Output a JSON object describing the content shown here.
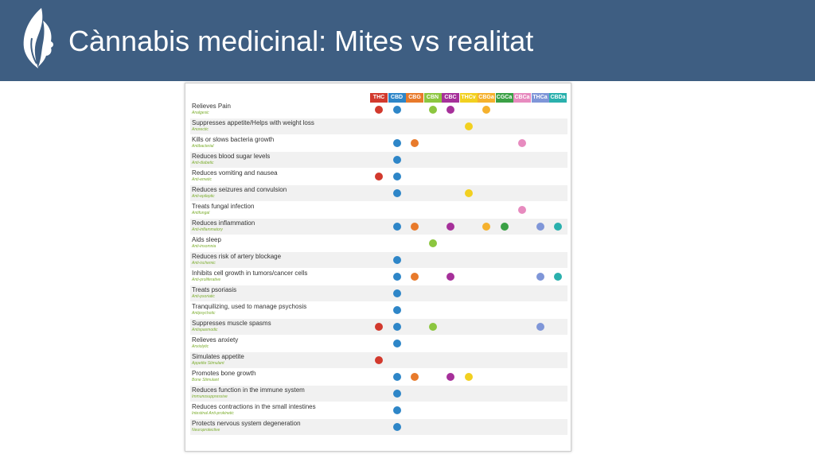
{
  "header": {
    "title": "Cànnabis medicinal: Mites vs realitat",
    "background": "#3e5e82",
    "logo_icon": "leaf-face-logo-icon"
  },
  "chart_data": {
    "type": "table",
    "columns": [
      {
        "label": "THC",
        "color": "#d2392d"
      },
      {
        "label": "CBD",
        "color": "#2e86c8"
      },
      {
        "label": "CBG",
        "color": "#e87a2b"
      },
      {
        "label": "CBN",
        "color": "#8cc63f"
      },
      {
        "label": "CBC",
        "color": "#a6309a"
      },
      {
        "label": "THCv",
        "color": "#f2d020"
      },
      {
        "label": "CBGa",
        "color": "#f5b12e"
      },
      {
        "label": "CGCa",
        "color": "#3aa045"
      },
      {
        "label": "CBCa",
        "color": "#e78bbf"
      },
      {
        "label": "THCa",
        "color": "#7f96d8"
      },
      {
        "label": "CBDa",
        "color": "#2ab0ad"
      }
    ],
    "rows": [
      {
        "label": "Relieves Pain",
        "sub": "Analgesic",
        "marks": [
          "THC",
          "CBD",
          "CBN",
          "CBC",
          "CBGa"
        ]
      },
      {
        "label": "Suppresses appetite/Helps with weight loss",
        "sub": "Anorectic",
        "marks": [
          "THCv"
        ]
      },
      {
        "label": "Kills or slows bacteria growth",
        "sub": "Antibacterial",
        "marks": [
          "CBD",
          "CBG",
          "CBCa"
        ]
      },
      {
        "label": "Reduces blood sugar levels",
        "sub": "Anti-diabetic",
        "marks": [
          "CBD"
        ]
      },
      {
        "label": "Reduces vomiting and nausea",
        "sub": "Anti-emetic",
        "marks": [
          "THC",
          "CBD"
        ]
      },
      {
        "label": "Reduces seizures and convulsion",
        "sub": "Anti-epileptic",
        "marks": [
          "CBD",
          "THCv"
        ]
      },
      {
        "label": "Treats fungal infection",
        "sub": "Antifungal",
        "marks": [
          "CBCa"
        ]
      },
      {
        "label": "Reduces inflammation",
        "sub": "Anti-inflammatory",
        "marks": [
          "CBD",
          "CBG",
          "CBC",
          "CBGa",
          "CGCa",
          "THCa",
          "CBDa"
        ]
      },
      {
        "label": "Aids sleep",
        "sub": "Anti-insomnia",
        "marks": [
          "CBN"
        ]
      },
      {
        "label": "Reduces risk of artery blockage",
        "sub": "Anti-ischemic",
        "marks": [
          "CBD"
        ]
      },
      {
        "label": "Inhibits cell growth in tumors/cancer cells",
        "sub": "Anti-proliferative",
        "marks": [
          "CBD",
          "CBG",
          "CBC",
          "THCa",
          "CBDa"
        ]
      },
      {
        "label": "Treats psoriasis",
        "sub": "Anti-psoriatic",
        "marks": [
          "CBD"
        ]
      },
      {
        "label": "Tranquilizing, used to manage psychosis",
        "sub": "Antipsychotic",
        "marks": [
          "CBD"
        ]
      },
      {
        "label": "Suppresses muscle spasms",
        "sub": "Antispasmodic",
        "marks": [
          "THC",
          "CBD",
          "CBN",
          "THCa"
        ]
      },
      {
        "label": "Relieves anxiety",
        "sub": "Anxiolytic",
        "marks": [
          "CBD"
        ]
      },
      {
        "label": "Simulates appetite",
        "sub": "Appetite Stimulant",
        "marks": [
          "THC"
        ]
      },
      {
        "label": "Promotes bone growth",
        "sub": "Bone Stimulant",
        "marks": [
          "CBD",
          "CBG",
          "CBC",
          "THCv"
        ]
      },
      {
        "label": "Reduces function in the immune system",
        "sub": "Immunosuppressive",
        "marks": [
          "CBD"
        ]
      },
      {
        "label": "Reduces contractions in the small intestines",
        "sub": "Intestinal Anti-prokinetic",
        "marks": [
          "CBD"
        ]
      },
      {
        "label": "Protects nervous system degeneration",
        "sub": "Neuroprotective",
        "marks": [
          "CBD"
        ]
      }
    ]
  }
}
